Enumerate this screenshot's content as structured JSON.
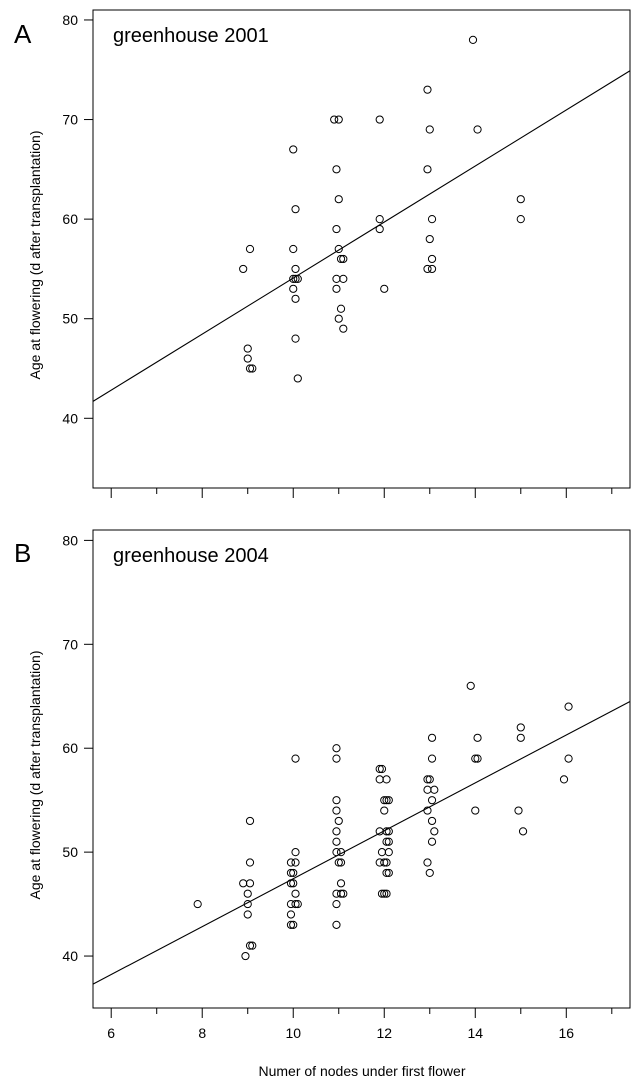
{
  "chart_data": [
    {
      "type": "scatter",
      "panel_letter": "A",
      "title": "greenhouse 2001",
      "xlabel": "",
      "ylabel": "Age at flowering (d after transplantation)",
      "xlim": [
        5.6,
        17.4
      ],
      "ylim": [
        33,
        81
      ],
      "x_ticks": [
        6,
        8,
        10,
        12,
        14,
        16
      ],
      "x_tick_labels": [],
      "y_ticks": [
        40,
        50,
        60,
        70,
        80
      ],
      "y_tick_labels": [
        "40",
        "50",
        "60",
        "70",
        "80"
      ],
      "grid": false,
      "points": [
        [
          8.9,
          55
        ],
        [
          9.05,
          57
        ],
        [
          9.0,
          47
        ],
        [
          9.0,
          46
        ],
        [
          9.05,
          45
        ],
        [
          9.1,
          45
        ],
        [
          10.0,
          67
        ],
        [
          10.0,
          57
        ],
        [
          10.0,
          54
        ],
        [
          10.05,
          54
        ],
        [
          10.1,
          54
        ],
        [
          10.05,
          61
        ],
        [
          10.05,
          55
        ],
        [
          10.0,
          53
        ],
        [
          10.05,
          52
        ],
        [
          10.05,
          48
        ],
        [
          10.1,
          44
        ],
        [
          10.9,
          70
        ],
        [
          11.0,
          70
        ],
        [
          10.95,
          65
        ],
        [
          11.0,
          62
        ],
        [
          10.95,
          59
        ],
        [
          11.0,
          57
        ],
        [
          11.05,
          56
        ],
        [
          11.1,
          56
        ],
        [
          10.95,
          54
        ],
        [
          11.1,
          54
        ],
        [
          10.95,
          53
        ],
        [
          11.05,
          51
        ],
        [
          11.0,
          50
        ],
        [
          11.1,
          49
        ],
        [
          11.9,
          70
        ],
        [
          11.9,
          60
        ],
        [
          11.9,
          59
        ],
        [
          12.0,
          53
        ],
        [
          12.95,
          73
        ],
        [
          13.0,
          69
        ],
        [
          12.95,
          65
        ],
        [
          13.05,
          60
        ],
        [
          13.0,
          58
        ],
        [
          13.05,
          56
        ],
        [
          12.95,
          55
        ],
        [
          13.05,
          55
        ],
        [
          13.95,
          78
        ],
        [
          14.05,
          69
        ],
        [
          15.0,
          62
        ],
        [
          15.0,
          60
        ]
      ],
      "regression_line": {
        "x": [
          5.6,
          17.4
        ],
        "y": [
          41.7,
          74.9
        ]
      }
    },
    {
      "type": "scatter",
      "panel_letter": "B",
      "title": "greenhouse 2004",
      "xlabel": "Numer of nodes under first flower",
      "ylabel": "Age at flowering (d after transplantation)",
      "xlim": [
        5.6,
        17.4
      ],
      "ylim": [
        35,
        81
      ],
      "x_ticks": [
        6,
        8,
        10,
        12,
        14,
        16
      ],
      "x_tick_labels": [
        "6",
        "8",
        "10",
        "12",
        "14",
        "16"
      ],
      "y_ticks": [
        40,
        50,
        60,
        70,
        80
      ],
      "y_tick_labels": [
        "40",
        "50",
        "60",
        "70",
        "80"
      ],
      "grid": false,
      "points": [
        [
          7.9,
          45
        ],
        [
          8.9,
          47
        ],
        [
          9.05,
          53
        ],
        [
          9.05,
          49
        ],
        [
          9.05,
          47
        ],
        [
          9.0,
          46
        ],
        [
          9.0,
          45
        ],
        [
          9.0,
          44
        ],
        [
          9.05,
          41
        ],
        [
          9.1,
          41
        ],
        [
          8.95,
          40
        ],
        [
          10.05,
          59
        ],
        [
          10.05,
          50
        ],
        [
          9.95,
          49
        ],
        [
          10.05,
          49
        ],
        [
          9.95,
          48
        ],
        [
          10.0,
          48
        ],
        [
          9.95,
          47
        ],
        [
          10.0,
          47
        ],
        [
          10.05,
          46
        ],
        [
          9.95,
          45
        ],
        [
          10.05,
          45
        ],
        [
          10.1,
          45
        ],
        [
          9.95,
          44
        ],
        [
          9.95,
          43
        ],
        [
          10.0,
          43
        ],
        [
          10.95,
          60
        ],
        [
          10.95,
          59
        ],
        [
          10.95,
          55
        ],
        [
          10.95,
          54
        ],
        [
          11.0,
          53
        ],
        [
          10.95,
          52
        ],
        [
          10.95,
          51
        ],
        [
          10.95,
          50
        ],
        [
          11.05,
          50
        ],
        [
          11.0,
          49
        ],
        [
          11.05,
          49
        ],
        [
          11.05,
          47
        ],
        [
          10.95,
          46
        ],
        [
          11.05,
          46
        ],
        [
          11.1,
          46
        ],
        [
          10.95,
          45
        ],
        [
          10.95,
          43
        ],
        [
          11.9,
          58
        ],
        [
          11.95,
          58
        ],
        [
          11.9,
          57
        ],
        [
          12.05,
          57
        ],
        [
          12.0,
          55
        ],
        [
          12.05,
          55
        ],
        [
          12.1,
          55
        ],
        [
          12.0,
          54
        ],
        [
          11.9,
          52
        ],
        [
          12.05,
          52
        ],
        [
          12.1,
          52
        ],
        [
          12.05,
          51
        ],
        [
          12.1,
          51
        ],
        [
          11.95,
          50
        ],
        [
          12.1,
          50
        ],
        [
          11.9,
          49
        ],
        [
          12.0,
          49
        ],
        [
          12.05,
          49
        ],
        [
          12.05,
          48
        ],
        [
          12.1,
          48
        ],
        [
          11.95,
          46
        ],
        [
          12.0,
          46
        ],
        [
          12.05,
          46
        ],
        [
          12.95,
          57
        ],
        [
          13.0,
          57
        ],
        [
          12.95,
          56
        ],
        [
          13.05,
          61
        ],
        [
          13.05,
          59
        ],
        [
          13.1,
          56
        ],
        [
          13.05,
          55
        ],
        [
          12.95,
          54
        ],
        [
          13.05,
          53
        ],
        [
          13.1,
          52
        ],
        [
          13.05,
          51
        ],
        [
          12.95,
          49
        ],
        [
          13.0,
          48
        ],
        [
          13.9,
          66
        ],
        [
          14.05,
          61
        ],
        [
          14.0,
          59
        ],
        [
          14.05,
          59
        ],
        [
          14.0,
          54
        ],
        [
          15.0,
          62
        ],
        [
          15.0,
          61
        ],
        [
          14.95,
          54
        ],
        [
          15.05,
          52
        ],
        [
          16.05,
          64
        ],
        [
          16.05,
          59
        ],
        [
          15.95,
          57
        ]
      ],
      "regression_line": {
        "x": [
          5.6,
          17.4
        ],
        "y": [
          37.3,
          64.5
        ]
      }
    }
  ]
}
